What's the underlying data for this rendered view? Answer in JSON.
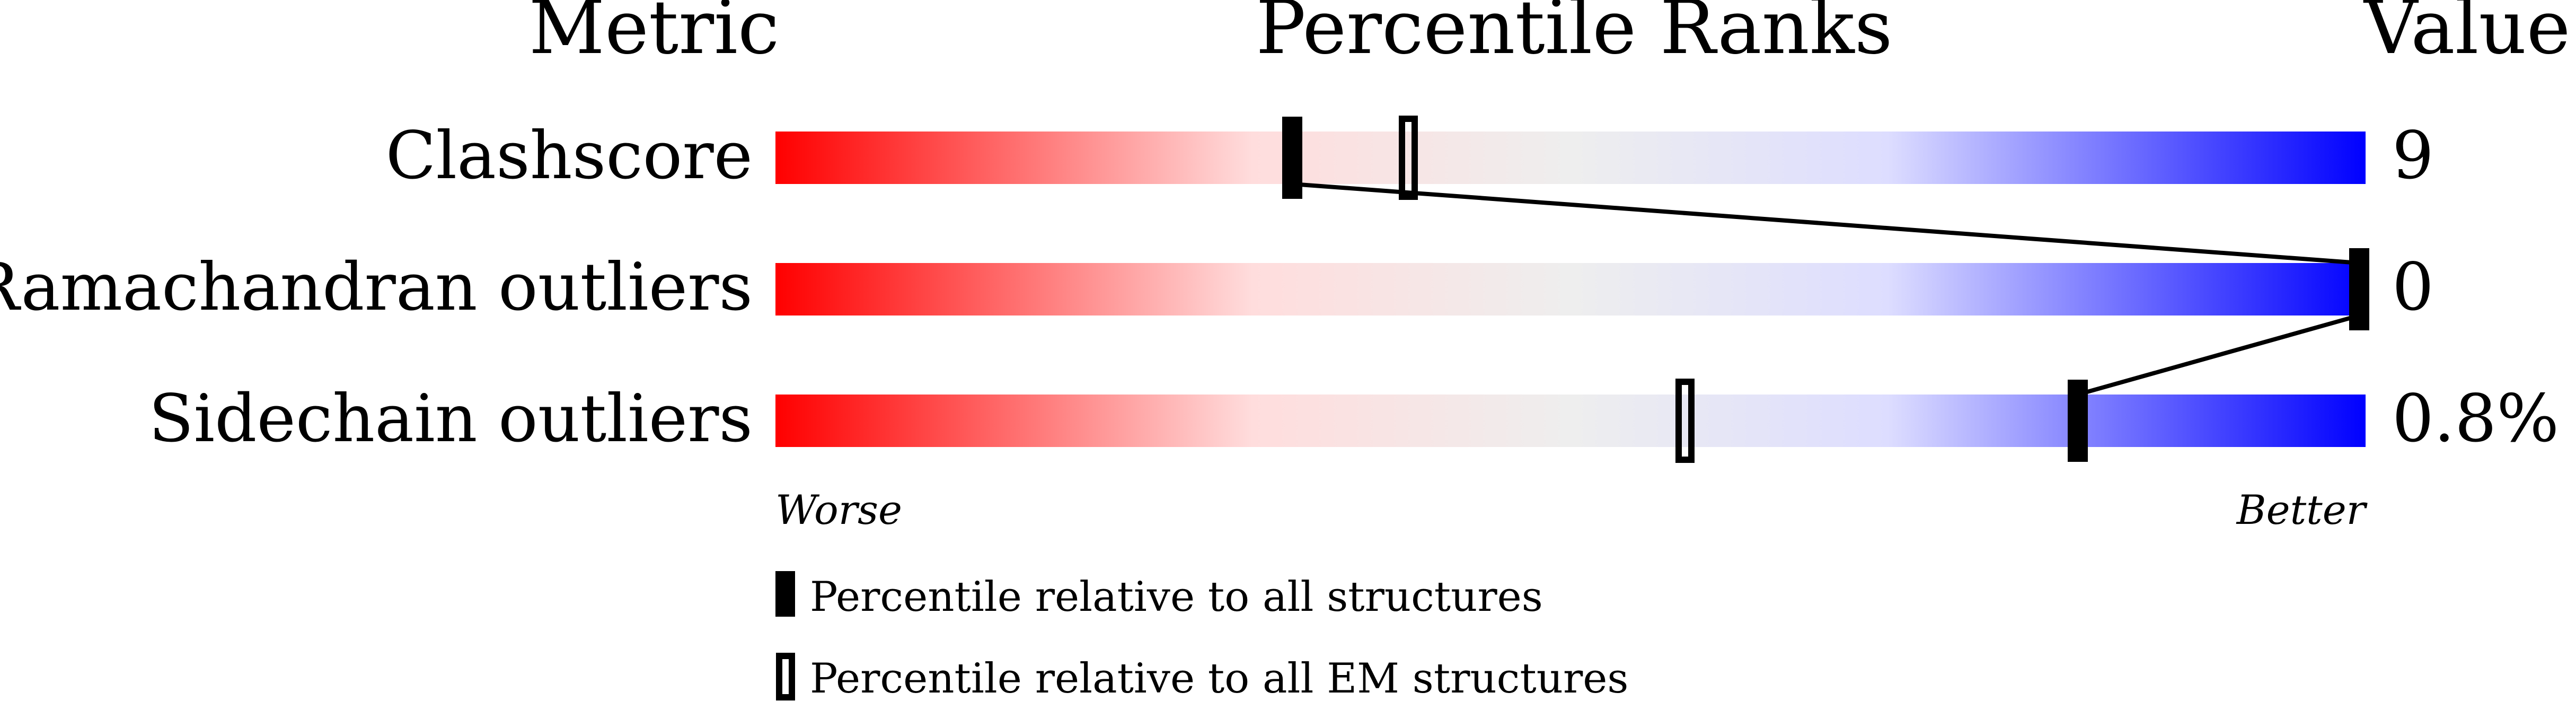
{
  "chart_data": {
    "type": "bar",
    "headers": {
      "metric": "Metric",
      "ranks": "Percentile Ranks",
      "value": "Value"
    },
    "xlim": [
      0,
      100
    ],
    "rows": [
      {
        "metric": "Clashscore",
        "value": "9",
        "percentile_all": 32.5,
        "percentile_em": 39.8
      },
      {
        "metric": "Ramachandran outliers",
        "value": "0",
        "percentile_all": 100,
        "percentile_em": null
      },
      {
        "metric": "Sidechain outliers",
        "value": "0.8%",
        "percentile_all": 81.9,
        "percentile_em": 57.2
      }
    ],
    "axis_labels": {
      "worse": "Worse",
      "better": "Better"
    },
    "legend": [
      {
        "marker": "filled",
        "label": "Percentile relative to all structures"
      },
      {
        "marker": "hollow",
        "label": "Percentile relative to all EM structures"
      }
    ],
    "colors": {
      "worst": "#ff0000",
      "low": "#ffdddd",
      "mid": "#eeeeee",
      "high": "#ddddff",
      "best": "#0000ff",
      "marker": "#000000"
    }
  }
}
